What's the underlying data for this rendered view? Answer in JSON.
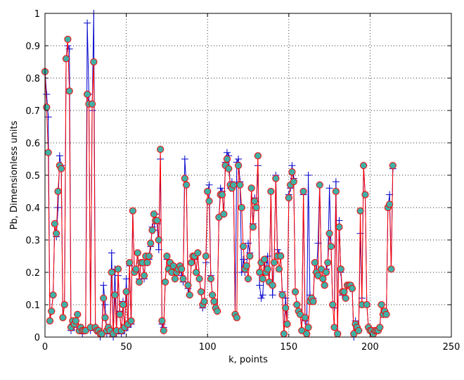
{
  "chart_data": {
    "type": "line",
    "title": "",
    "xlabel": "k, points",
    "ylabel": "Pb, Dimensionless units",
    "xlim": [
      0,
      250
    ],
    "ylim": [
      0,
      1
    ],
    "xticks": [
      0,
      50,
      100,
      150,
      200,
      250
    ],
    "yticks": [
      0,
      0.1,
      0.2,
      0.3,
      0.4,
      0.5,
      0.6,
      0.7,
      0.8,
      0.9,
      1
    ],
    "xtick_labels": [
      "0",
      "50",
      "100",
      "150",
      "200",
      "250"
    ],
    "ytick_labels": [
      "0",
      "0.1",
      "0.2",
      "0.3",
      "0.4",
      "0.5",
      "0.6",
      "0.7",
      "0.8",
      "0.9",
      "1"
    ],
    "grid": true,
    "legend": "none",
    "series": [
      {
        "style": "blue line with plus markers",
        "color": "#0000cc",
        "values": [
          0.82,
          0.75,
          0.68,
          0.05,
          0.08,
          0.13,
          0.35,
          0.31,
          0.4,
          0.56,
          0.53,
          0.06,
          0.1,
          0.86,
          0.9,
          0.89,
          0.02,
          0.04,
          0.03,
          0.05,
          0.07,
          0.02,
          0.03,
          0.01,
          0.02,
          0.02,
          0.97,
          0.75,
          0.02,
          0.7,
          1.0,
          0.03,
          0.02,
          0.01,
          0.0,
          0.01,
          0.16,
          0.1,
          0.01,
          0.03,
          0.01,
          0.26,
          0.0,
          0.21,
          0.01,
          0.19,
          0.08,
          0.01,
          0.11,
          0.02,
          0.18,
          0.03,
          0.22,
          0.04,
          0.39,
          0.2,
          0.21,
          0.26,
          0.18,
          0.23,
          0.23,
          0.18,
          0.25,
          0.23,
          0.24,
          0.28,
          0.34,
          0.33,
          0.38,
          0.35,
          0.27,
          0.55,
          0.04,
          0.03,
          0.17,
          0.24,
          0.21,
          0.23,
          0.2,
          0.22,
          0.18,
          0.2,
          0.21,
          0.22,
          0.19,
          0.17,
          0.55,
          0.47,
          0.15,
          0.13,
          0.23,
          0.25,
          0.24,
          0.2,
          0.26,
          0.18,
          0.14,
          0.09,
          0.11,
          0.23,
          0.45,
          0.47,
          0.19,
          0.13,
          0.11,
          0.09,
          0.08,
          0.37,
          0.46,
          0.45,
          0.38,
          0.54,
          0.57,
          0.56,
          0.46,
          0.48,
          0.47,
          0.07,
          0.54,
          0.55,
          0.48,
          0.2,
          0.24,
          0.2,
          0.22,
          0.29,
          0.26,
          0.46,
          0.35,
          0.43,
          0.4,
          0.53,
          0.16,
          0.12,
          0.13,
          0.23,
          0.2,
          0.25,
          0.17,
          0.45,
          0.13,
          0.23,
          0.5,
          0.27,
          0.26,
          0.25,
          0.14,
          0.01,
          0.12,
          0.04,
          0.44,
          0.46,
          0.53,
          0.49,
          0.14,
          0.1,
          0.08,
          0.07,
          0.02,
          0.44,
          0.05,
          0.01,
          0.5,
          0.13,
          0.11,
          0.12,
          0.23,
          0.2,
          0.29,
          0.47,
          0.21,
          0.18,
          0.16,
          0.21,
          0.23,
          0.46,
          0.28,
          0.1,
          0.09,
          0.48,
          0.01,
          0.36,
          0.2,
          0.13,
          0.14,
          0.12,
          0.16,
          0.16,
          0.15,
          0.15,
          0.0,
          0.05,
          0.03,
          0.02,
          0.32,
          0.12,
          0.53,
          0.44,
          0.1,
          0.03,
          0.02,
          0.02,
          0.01,
          0.02,
          0.02,
          0.02,
          0.03,
          0.1,
          0.07,
          0.08,
          0.07,
          0.4,
          0.44,
          0.21,
          0.52
        ]
      },
      {
        "style": "red line with teal circle markers",
        "color": "#ff0000",
        "marker_color": "#40b0a6",
        "values": [
          0.82,
          0.71,
          0.57,
          0.05,
          0.08,
          0.13,
          0.35,
          0.32,
          0.45,
          0.53,
          0.52,
          0.06,
          0.1,
          0.86,
          0.92,
          0.76,
          0.03,
          0.05,
          0.04,
          0.05,
          0.07,
          0.02,
          0.03,
          0.02,
          0.02,
          0.02,
          0.75,
          0.72,
          0.03,
          0.72,
          0.85,
          0.03,
          0.02,
          0.02,
          0.01,
          0.01,
          0.12,
          0.06,
          0.02,
          0.03,
          0.02,
          0.2,
          0.01,
          0.13,
          0.02,
          0.21,
          0.07,
          0.02,
          0.1,
          0.03,
          0.14,
          0.04,
          0.23,
          0.05,
          0.39,
          0.2,
          0.21,
          0.26,
          0.17,
          0.23,
          0.23,
          0.19,
          0.25,
          0.23,
          0.25,
          0.29,
          0.33,
          0.38,
          0.36,
          0.36,
          0.3,
          0.58,
          0.05,
          0.02,
          0.17,
          0.25,
          0.21,
          0.23,
          0.2,
          0.22,
          0.18,
          0.2,
          0.21,
          0.22,
          0.21,
          0.18,
          0.49,
          0.47,
          0.16,
          0.13,
          0.23,
          0.25,
          0.25,
          0.2,
          0.26,
          0.18,
          0.14,
          0.1,
          0.11,
          0.25,
          0.45,
          0.42,
          0.18,
          0.13,
          0.11,
          0.09,
          0.08,
          0.37,
          0.44,
          0.44,
          0.38,
          0.53,
          0.55,
          0.52,
          0.47,
          0.46,
          0.47,
          0.07,
          0.06,
          0.53,
          0.47,
          0.4,
          0.28,
          0.21,
          0.22,
          0.18,
          0.25,
          0.46,
          0.34,
          0.42,
          0.4,
          0.56,
          0.2,
          0.23,
          0.18,
          0.24,
          0.2,
          0.21,
          0.17,
          0.45,
          0.16,
          0.23,
          0.49,
          0.25,
          0.21,
          0.25,
          0.13,
          0.01,
          0.09,
          0.04,
          0.43,
          0.47,
          0.51,
          0.48,
          0.14,
          0.1,
          0.08,
          0.07,
          0.02,
          0.45,
          0.06,
          0.01,
          0.03,
          0.11,
          0.12,
          0.11,
          0.23,
          0.2,
          0.19,
          0.47,
          0.21,
          0.18,
          0.16,
          0.2,
          0.23,
          0.32,
          0.28,
          0.1,
          0.03,
          0.45,
          0.01,
          0.34,
          0.21,
          0.14,
          0.14,
          0.12,
          0.16,
          0.16,
          0.16,
          0.15,
          0.01,
          0.04,
          0.03,
          0.02,
          0.39,
          0.1,
          0.53,
          0.44,
          0.1,
          0.03,
          0.02,
          0.02,
          0.01,
          0.02,
          0.02,
          0.02,
          0.03,
          0.1,
          0.07,
          0.08,
          0.07,
          0.4,
          0.41,
          0.21,
          0.53
        ]
      }
    ]
  }
}
